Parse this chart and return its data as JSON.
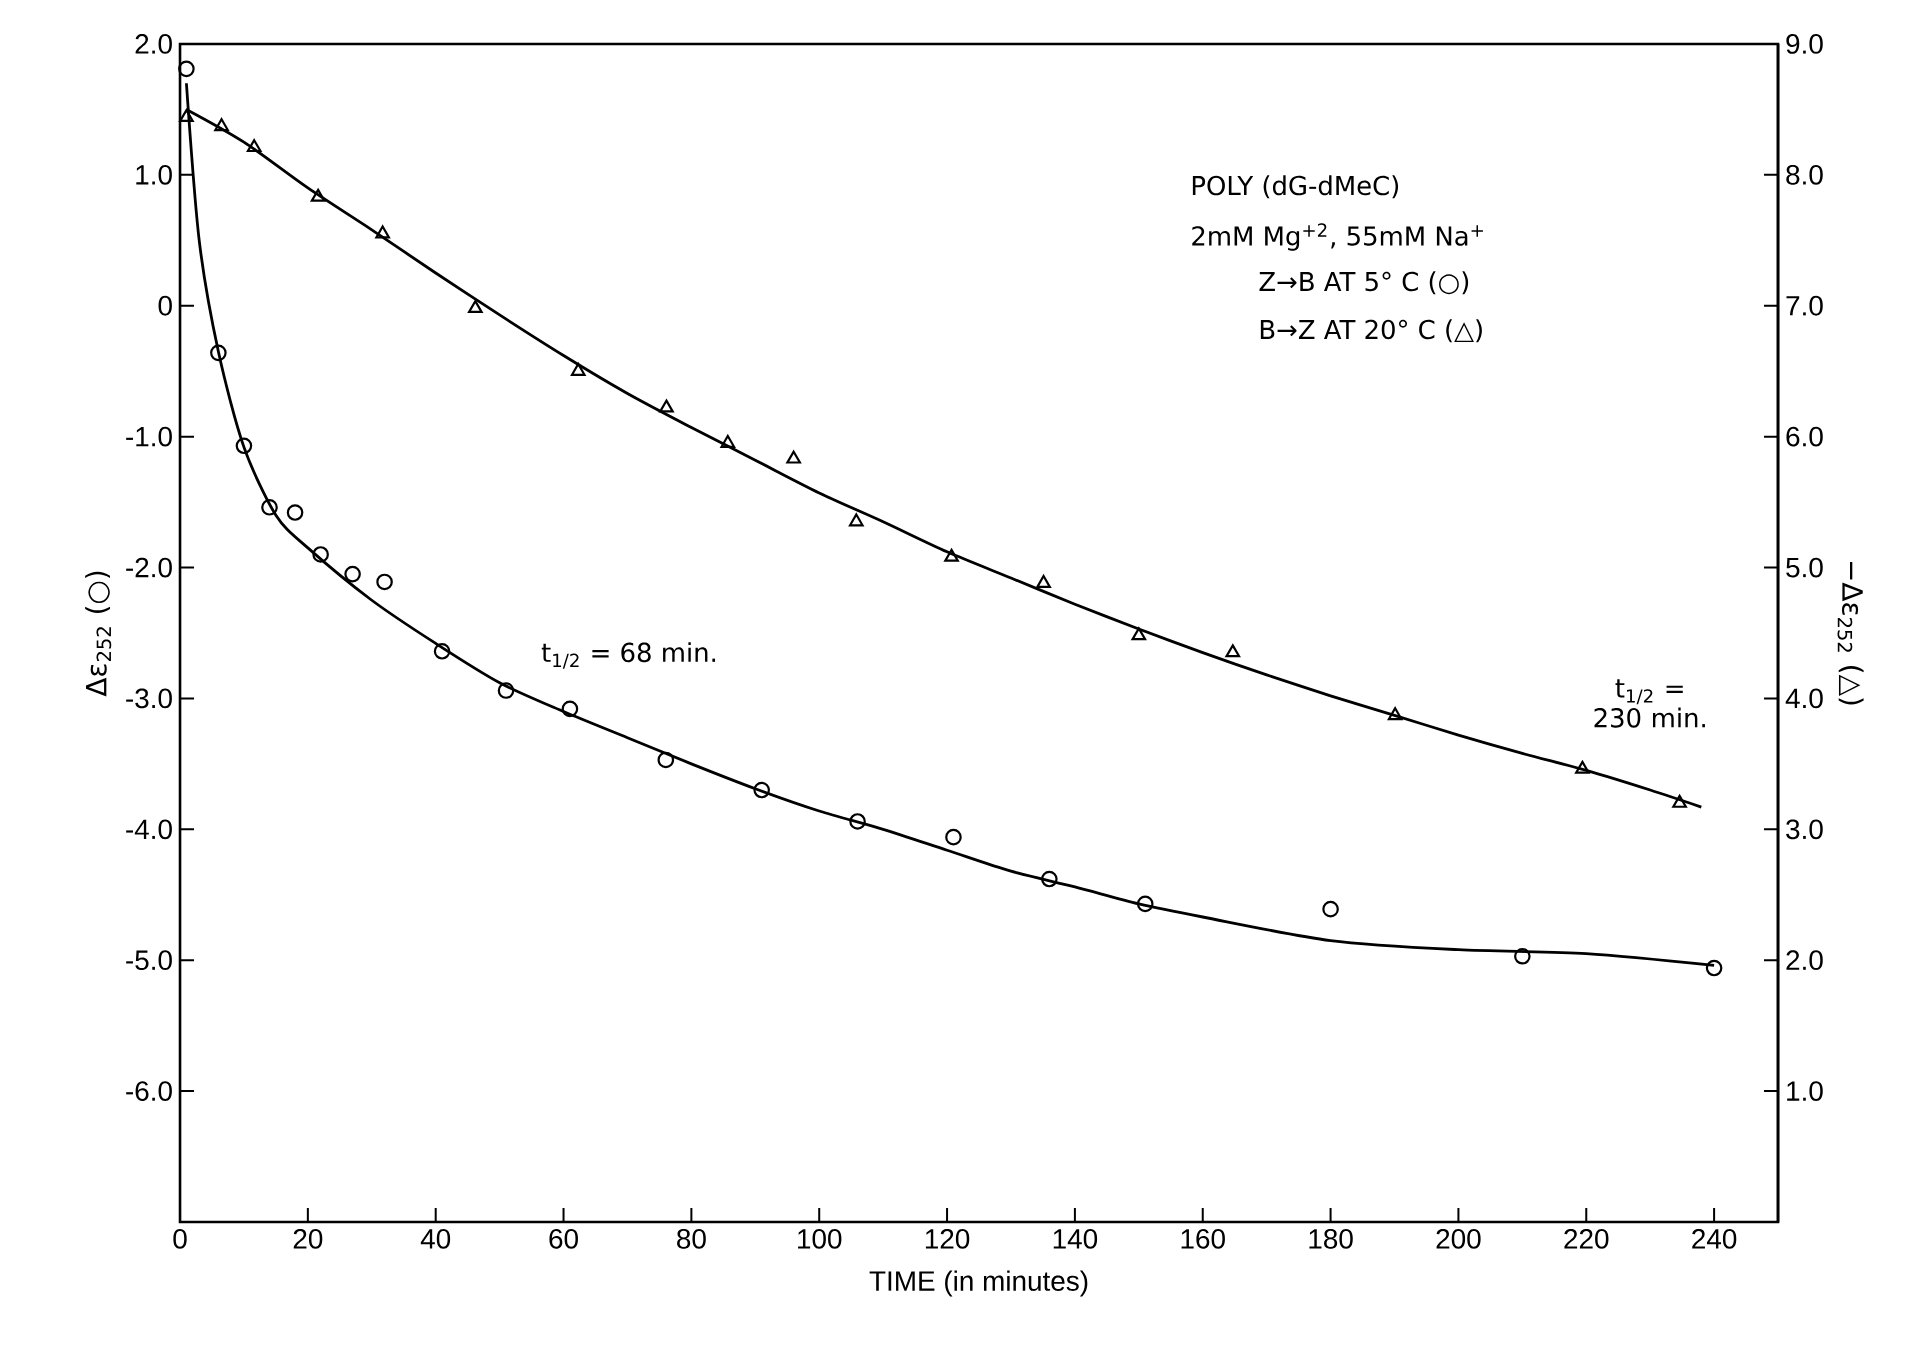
{
  "chart_data": {
    "type": "scatter",
    "xlabel": "TIME (in minutes)",
    "ylabel": "Δε$_{252}$ (○)",
    "y2label": "−Δε$_{252}$ (△)",
    "xlim": [
      0,
      250
    ],
    "xticks": [
      0,
      20,
      40,
      60,
      80,
      100,
      120,
      140,
      160,
      180,
      200,
      220,
      240
    ],
    "ylim": [
      -7,
      2
    ],
    "yticks": [
      {
        "value": -6,
        "label": "-6.0"
      },
      {
        "value": -5,
        "label": "-5.0"
      },
      {
        "value": -4,
        "label": "-4.0"
      },
      {
        "value": -3,
        "label": "-3.0"
      },
      {
        "value": -2,
        "label": "-2.0"
      },
      {
        "value": -1,
        "label": "-1.0"
      },
      0,
      {
        "value": 1,
        "label": "1.0"
      },
      {
        "value": 2,
        "label": "2.0"
      }
    ],
    "y2lim": [
      0,
      9
    ],
    "y2ticks": [
      {
        "value": 1,
        "label": "1.0"
      },
      {
        "value": 2,
        "label": "2.0"
      },
      {
        "value": 3,
        "label": "3.0"
      },
      {
        "value": 4,
        "label": "4.0"
      },
      {
        "value": 5,
        "label": "5.0"
      },
      {
        "value": 6,
        "label": "6.0"
      },
      {
        "value": 7,
        "label": "7.0"
      },
      {
        "value": 8,
        "label": "8.0"
      },
      {
        "value": 9,
        "label": "9.0"
      }
    ],
    "series": [
      {
        "marker": "circle",
        "color": "#000000",
        "x": [
          1,
          6,
          10,
          14,
          18,
          22,
          27,
          32,
          41,
          51,
          61,
          76,
          91,
          106,
          121,
          136,
          151,
          180,
          210,
          240
        ],
        "values": [
          1.81,
          -0.36,
          -1.07,
          -1.54,
          -1.58,
          -1.9,
          -2.05,
          -2.11,
          -2.64,
          -2.94,
          -3.08,
          -3.47,
          -3.7,
          -3.94,
          -4.06,
          -4.38,
          -4.57,
          -4.61,
          -4.97,
          -5.06
        ]
      },
      {
        "marker": "triangle",
        "axis": "y2",
        "color": "#000000",
        "x": [
          1,
          6.5,
          11.6,
          21.6,
          31.7,
          46.2,
          62.3,
          76.1,
          85.7,
          96,
          105.8,
          120.7,
          135.1,
          150,
          164.7,
          190.1,
          219.4,
          234.6
        ],
        "values": [
          8.44,
          8.37,
          8.21,
          7.83,
          7.55,
          6.98,
          6.5,
          6.22,
          5.95,
          5.83,
          5.35,
          5.08,
          4.88,
          4.48,
          4.35,
          3.87,
          3.46,
          3.2
        ]
      },
      {
        "type": "line",
        "marker": "none",
        "line_style": "solid",
        "color": "#000000",
        "x": [
          1,
          3,
          6,
          10,
          15,
          20,
          30,
          40,
          50,
          60,
          70,
          80,
          90,
          100,
          110,
          120,
          130,
          140,
          150,
          160,
          180,
          200,
          220,
          240
        ],
        "values": [
          1.7,
          0.5,
          -0.35,
          -1.08,
          -1.6,
          -1.85,
          -2.25,
          -2.58,
          -2.88,
          -3.1,
          -3.3,
          -3.5,
          -3.69,
          -3.86,
          -4.0,
          -4.16,
          -4.32,
          -4.44,
          -4.57,
          -4.67,
          -4.85,
          -4.92,
          -4.95,
          -5.04
        ]
      },
      {
        "type": "line",
        "marker": "none",
        "line_style": "solid",
        "axis": "y2",
        "color": "#000000",
        "x": [
          1,
          10,
          20,
          30,
          40,
          50,
          60,
          70,
          80,
          90,
          100,
          110,
          120,
          130,
          140,
          150,
          160,
          170,
          180,
          190,
          200,
          210,
          220,
          230,
          238
        ],
        "values": [
          8.5,
          8.25,
          7.9,
          7.58,
          7.25,
          6.93,
          6.62,
          6.33,
          6.07,
          5.82,
          5.57,
          5.35,
          5.12,
          4.92,
          4.72,
          4.53,
          4.35,
          4.18,
          4.02,
          3.87,
          3.72,
          3.58,
          3.45,
          3.3,
          3.17
        ]
      }
    ],
    "annotations": [
      "POLY (dG-dMeC)",
      "2mM Mg$^{+2}$, 55mM Na$^{+}$",
      "Z→B AT 5° C (○)",
      "B→Z AT 20° C (△)",
      {
        "text": "t$_{1/2}$ = 68 min.",
        "x": 68,
        "y": -3.25
      },
      {
        "text": "t$_{1/2}$ = 230 min.",
        "x": 230,
        "y": -3.7
      }
    ]
  }
}
